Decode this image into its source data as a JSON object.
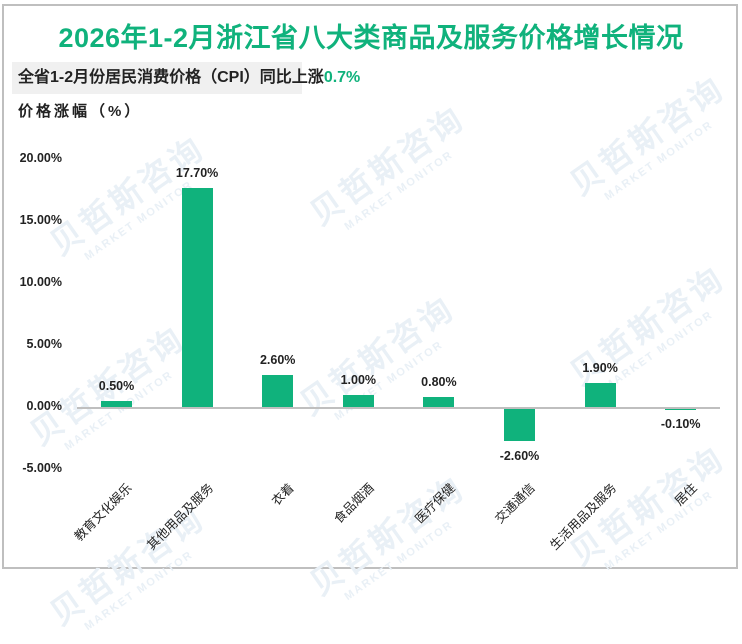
{
  "header": {
    "title": "2026年1-2月浙江省八大类商品及服务价格增长情况",
    "subtitle_prefix": "全省1-2月份居民消费价格（CPI）同比上涨",
    "subtitle_highlight": "0.7%",
    "ylabel": "价格涨幅（%）"
  },
  "watermark": {
    "cn": "贝哲斯咨询",
    "en": "MARKET MONITOR"
  },
  "colors": {
    "bar": "#10b27c",
    "title": "#10b27c",
    "axis": "#bfbfbf",
    "subtitle_bg": "#f0f0f0"
  },
  "chart_data": {
    "type": "bar",
    "title": "2026年1-2月浙江省八大类商品及服务价格增长情况",
    "subtitle": "全省1-2月份居民消费价格（CPI）同比上涨0.7%",
    "xlabel": "",
    "ylabel": "价格涨幅（%）",
    "categories": [
      "教育文化娱乐",
      "其他用品及服务",
      "衣着",
      "食品烟酒",
      "医疗保健",
      "交通通信",
      "生活用品及服务",
      "居住"
    ],
    "values": [
      0.5,
      17.7,
      2.6,
      1.0,
      0.8,
      -2.6,
      1.9,
      -0.1
    ],
    "value_labels": [
      "0.50%",
      "17.70%",
      "2.60%",
      "1.00%",
      "0.80%",
      "-2.60%",
      "1.90%",
      "-0.10%"
    ],
    "ylim": [
      -5,
      20
    ],
    "yticks": [
      "20.00%",
      "15.00%",
      "10.00%",
      "5.00%",
      "0.00%",
      "-5.00%"
    ],
    "grid": false,
    "legend": null
  }
}
